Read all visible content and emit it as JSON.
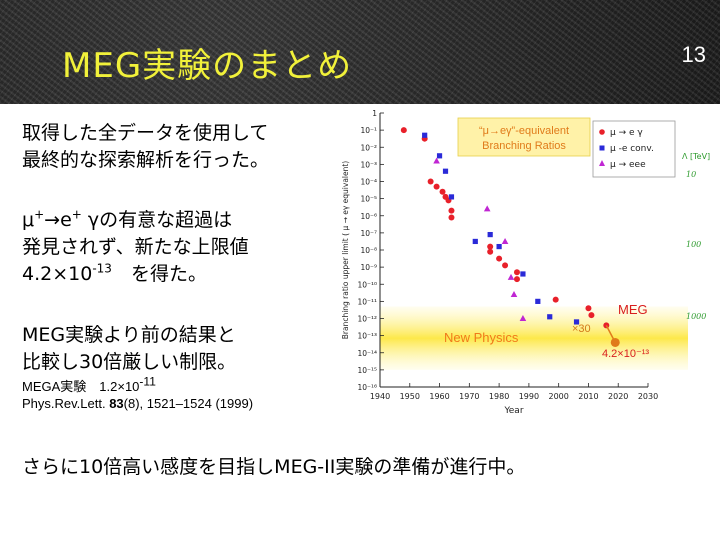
{
  "slide": {
    "title": "MEG実験のまとめ",
    "page_number": "13",
    "p1_line1": "取得した全データを使用して",
    "p1_line2": "最終的な探索解析を行った。",
    "p2_line1_a": "μ",
    "p2_line1_b": "→e",
    "p2_line1_c": " γの有意な超過は",
    "p2_plus": "+",
    "p2_line2": "発見されず、新たな上限値",
    "p2_line3_a": "4.2×10",
    "p2_line3_exp": "-13",
    "p2_line3_b": "　を得た。",
    "p3_line1": "MEG実験より前の結果と",
    "p3_line2": "比較し30倍厳しい制限。",
    "ref_line1_a": "MEGA実験　1.2×10",
    "ref_line1_exp": "-11",
    "ref_line2_a": "Phys.Rev.Lett. ",
    "ref_line2_vol": "83",
    "ref_line2_b": "(8), 1521–1524 (1999)",
    "bottom": "さらに10倍高い感度を目指しMEG-II実験の準備が進行中。"
  },
  "chart_data": {
    "type": "scatter",
    "xlabel": "Year",
    "ylabel": "Branching ratio upper limit ( μ → eγ equivalent)",
    "xlim": [
      1940,
      2030
    ],
    "ylim_log10": [
      -16,
      0
    ],
    "xticks": [
      "1940",
      "1950",
      "1960",
      "1970",
      "1980",
      "1990",
      "2000",
      "2010",
      "2020",
      "2030"
    ],
    "yticks": [
      "1",
      "10⁻¹",
      "10⁻²",
      "10⁻³",
      "10⁻⁴",
      "10⁻⁵",
      "10⁻⁶",
      "10⁻⁷",
      "10⁻⁸",
      "10⁻⁹",
      "10⁻¹⁰",
      "10⁻¹¹",
      "10⁻¹²",
      "10⁻¹³",
      "10⁻¹⁴",
      "10⁻¹⁵",
      "10⁻¹⁶"
    ],
    "annotation_box": "“μ→eγ”-equivalent\nBranching Ratios",
    "band_label": "New Physics",
    "meg_label": "MEG",
    "factor_label": "×30",
    "meg_value_label": "4.2×10⁻¹³",
    "right_edge_labels": [
      "Λ [TeV]",
      "10",
      "100",
      "1000"
    ],
    "legend": [
      {
        "name": "μ → e γ",
        "color": "#e8202a",
        "marker": "circle"
      },
      {
        "name": "μ -e conv.",
        "color": "#2a2ad8",
        "marker": "square"
      },
      {
        "name": "μ → eee",
        "color": "#c026d3",
        "marker": "triangle"
      }
    ],
    "series": [
      {
        "name": "μ → e γ",
        "color": "#e8202a",
        "marker": "circle",
        "points": [
          [
            1948,
            -1.0
          ],
          [
            1955,
            -1.5
          ],
          [
            1957,
            -4.0
          ],
          [
            1959,
            -4.3
          ],
          [
            1961,
            -4.6
          ],
          [
            1962,
            -4.9
          ],
          [
            1963,
            -5.1
          ],
          [
            1964,
            -5.7
          ],
          [
            1964,
            -6.1
          ],
          [
            1977,
            -7.8
          ],
          [
            1977,
            -8.1
          ],
          [
            1980,
            -8.5
          ],
          [
            1982,
            -8.9
          ],
          [
            1986,
            -9.3
          ],
          [
            1986,
            -9.7
          ],
          [
            1999,
            -10.9
          ],
          [
            2010,
            -11.4
          ],
          [
            2011,
            -11.8
          ],
          [
            2016,
            -12.4
          ]
        ]
      },
      {
        "name": "μ -e conv.",
        "color": "#2a2ad8",
        "marker": "square",
        "points": [
          [
            1955,
            -1.3
          ],
          [
            1960,
            -2.5
          ],
          [
            1962,
            -3.4
          ],
          [
            1964,
            -4.9
          ],
          [
            1972,
            -7.5
          ],
          [
            1977,
            -7.1
          ],
          [
            1980,
            -7.8
          ],
          [
            1988,
            -9.4
          ],
          [
            1993,
            -11.0
          ],
          [
            1997,
            -11.9
          ],
          [
            2006,
            -12.2
          ]
        ]
      },
      {
        "name": "μ → eee",
        "color": "#c026d3",
        "marker": "triangle",
        "points": [
          [
            1959,
            -2.8
          ],
          [
            1976,
            -5.6
          ],
          [
            1982,
            -7.5
          ],
          [
            1984,
            -9.6
          ],
          [
            1985,
            -10.6
          ],
          [
            1988,
            -12.0
          ]
        ]
      }
    ],
    "meg_future_arrow": {
      "from": [
        2016,
        -12.4
      ],
      "to": [
        2019,
        -13.4
      ]
    }
  }
}
